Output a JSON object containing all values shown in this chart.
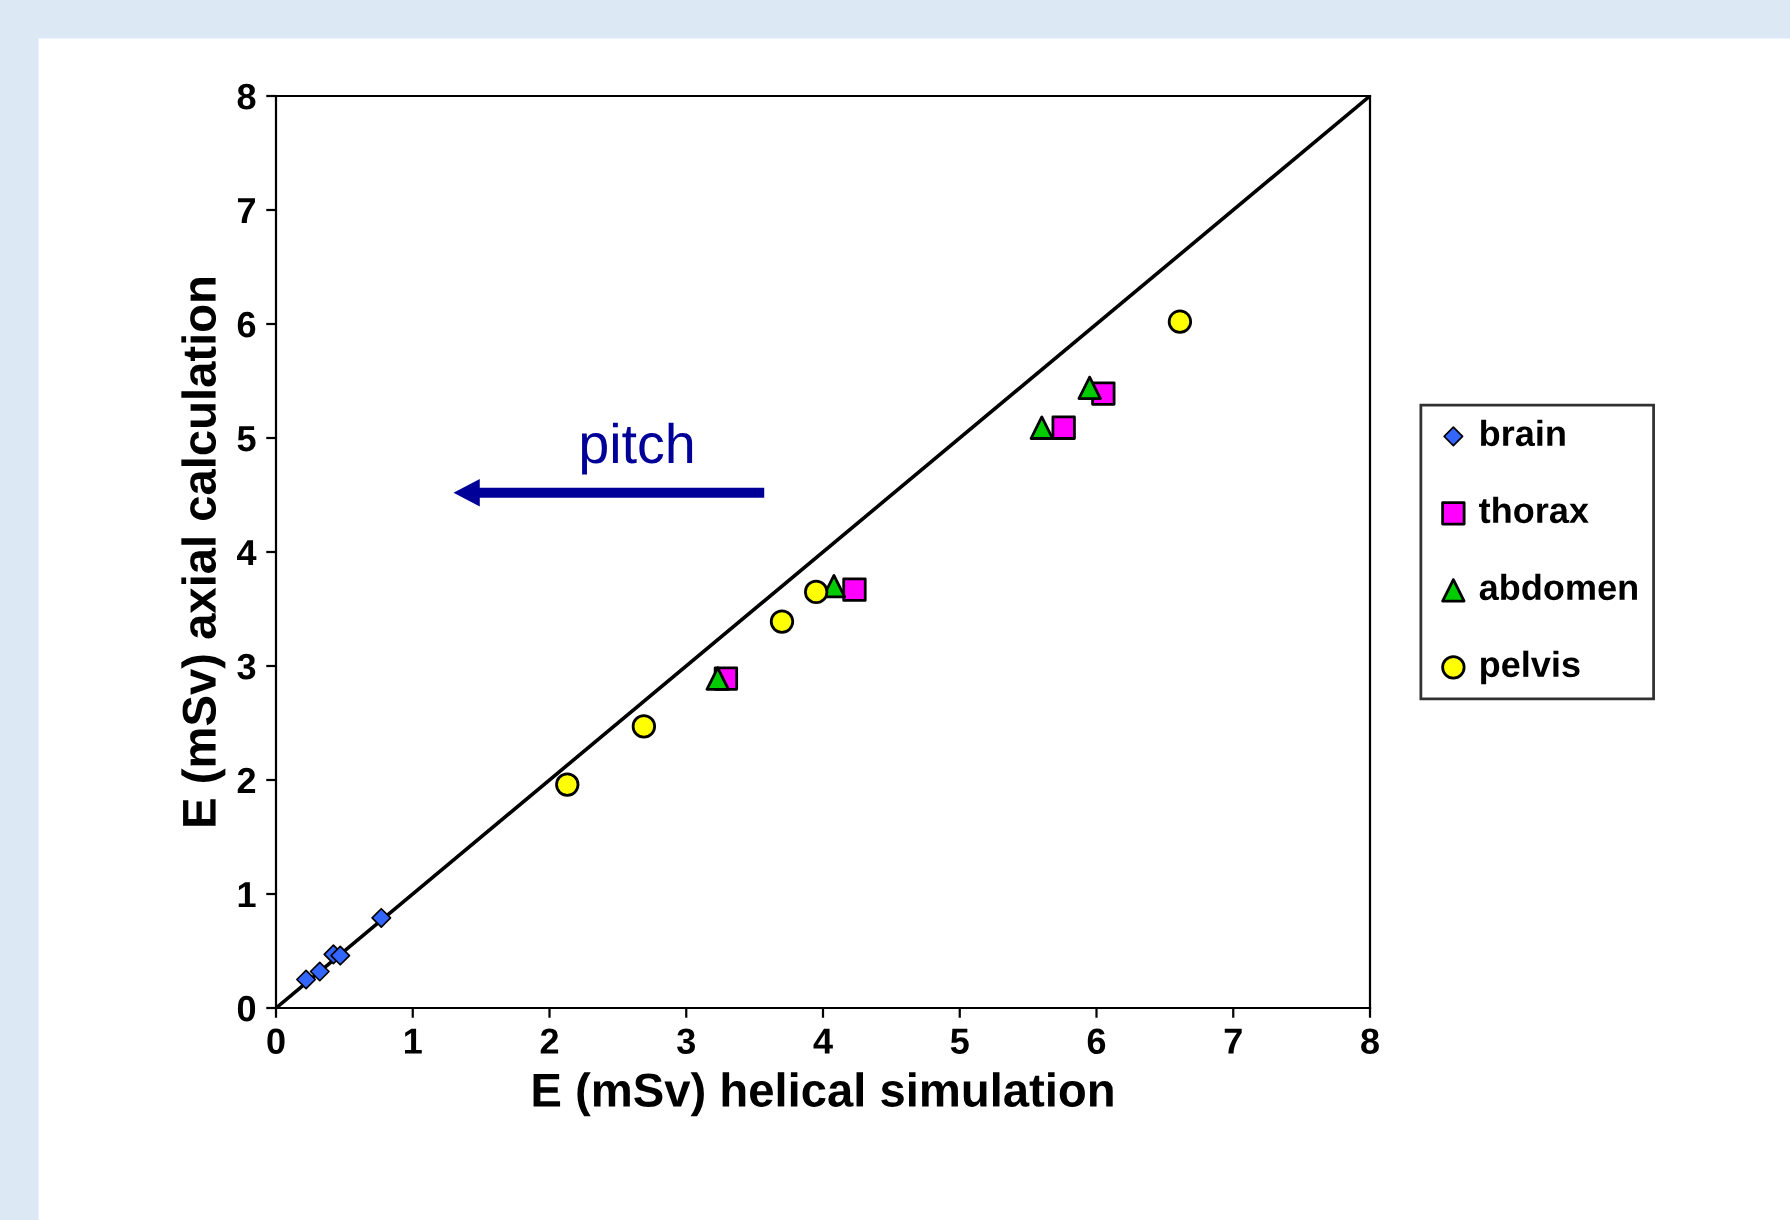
{
  "chart_data": {
    "type": "scatter",
    "xlabel": "E (mSv) helical simulation",
    "ylabel": "E (mSv) axial calculation",
    "series": [
      {
        "name": "brain",
        "color": "#3366ff",
        "marker": "diamond",
        "x": [
          0.22,
          0.32,
          0.42,
          0.47,
          0.77
        ],
        "values": [
          0.25,
          0.32,
          0.47,
          0.46,
          0.79
        ]
      },
      {
        "name": "thorax",
        "color": "#ff00ff",
        "marker": "square",
        "x": [
          3.29,
          4.23,
          5.76,
          6.05
        ],
        "values": [
          2.89,
          3.67,
          5.09,
          5.39
        ]
      },
      {
        "name": "abdomen",
        "color": "#00cc00",
        "marker": "triangle",
        "x": [
          3.23,
          4.08,
          5.6,
          5.95
        ],
        "values": [
          2.89,
          3.7,
          5.09,
          5.44
        ]
      },
      {
        "name": "pelvis",
        "color": "#ffff00",
        "marker": "circle",
        "x": [
          2.13,
          2.69,
          3.7,
          3.95,
          6.61
        ],
        "values": [
          1.96,
          2.47,
          3.39,
          3.65,
          6.02
        ]
      },
      {
        "type": "line",
        "color": "#000000",
        "marker": "none",
        "x": [
          0,
          8
        ],
        "values": [
          0,
          8
        ]
      }
    ],
    "annotations": [
      "pitch"
    ],
    "xlim": [
      0,
      8
    ],
    "ylim": [
      0,
      8
    ],
    "xticks": [
      0,
      1,
      2,
      3,
      4,
      5,
      6,
      7,
      8
    ],
    "yticks": [
      0,
      1,
      2,
      3,
      4,
      5,
      6,
      7,
      8
    ],
    "grid": false,
    "legend": "right"
  }
}
